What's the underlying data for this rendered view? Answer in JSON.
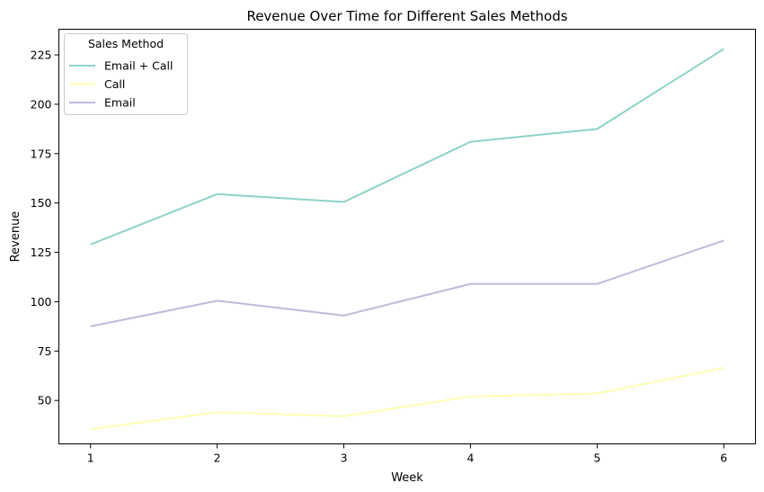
{
  "chart_data": {
    "type": "line",
    "title": "Revenue Over Time for Different Sales Methods",
    "xlabel": "Week",
    "ylabel": "Revenue",
    "x": [
      1,
      2,
      3,
      4,
      5,
      6
    ],
    "xlim": [
      0.75,
      6.25
    ],
    "ylim": [
      28,
      238
    ],
    "xticks": [
      1,
      2,
      3,
      4,
      5,
      6
    ],
    "yticks": [
      50,
      75,
      100,
      125,
      150,
      175,
      200,
      225
    ],
    "grid": false,
    "legend": {
      "title": "Sales Method",
      "placement": "top-left"
    },
    "series": [
      {
        "name": "Email + Call",
        "color": "#8dd3c7",
        "values": [
          129,
          154.5,
          150.5,
          181,
          187.5,
          228
        ]
      },
      {
        "name": "Call",
        "color": "#ffffb3",
        "values": [
          35.5,
          44,
          42,
          52,
          53.5,
          66.5
        ]
      },
      {
        "name": "Email",
        "color": "#bebada",
        "values": [
          87.5,
          100.5,
          93,
          109,
          109,
          131
        ]
      }
    ]
  }
}
